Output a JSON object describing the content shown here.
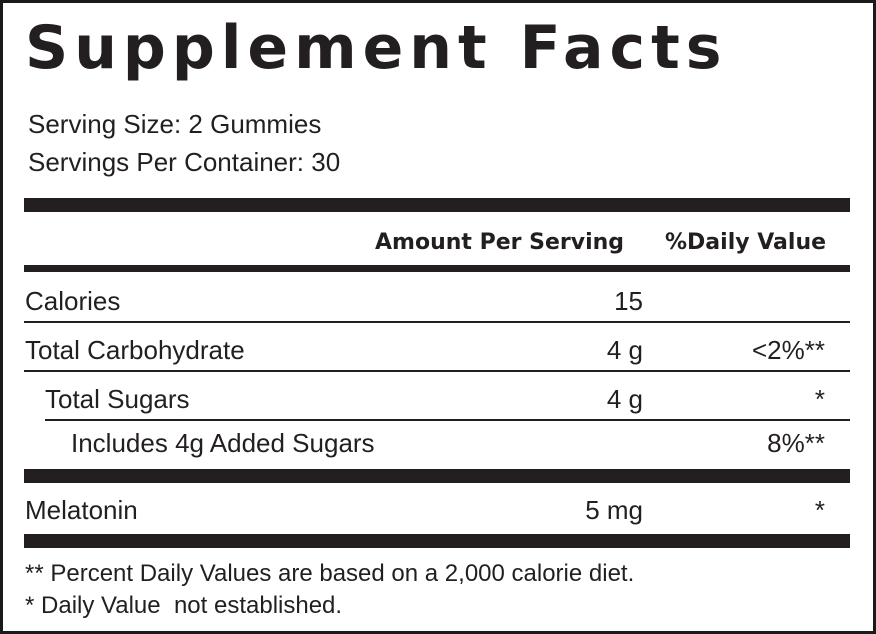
{
  "title": "Supplement Facts",
  "serving_size": "Serving Size: 2 Gummies",
  "servings_per_container": "Servings Per Container: 30",
  "header": {
    "amount_per_serving": "Amount Per Serving",
    "daily_value": "%Daily Value"
  },
  "rows": [
    {
      "name": "Calories",
      "amount": "15",
      "dv": ""
    },
    {
      "name": "Total Carbohydrate",
      "amount": "4 g",
      "dv": "<2%**"
    },
    {
      "name": "Total Sugars",
      "amount": "4 g",
      "dv": "*"
    },
    {
      "name": "Includes 4g Added Sugars",
      "amount": "",
      "dv": "8%**"
    },
    {
      "name": "Melatonin",
      "amount": "5 mg",
      "dv": "*"
    }
  ],
  "footnotes": [
    "** Percent Daily Values are based on a 2,000 calorie diet.",
    "* Daily Value  not established."
  ],
  "colors": {
    "ink": "#231f20",
    "border": "#1a1a1a",
    "background": "#ffffff"
  }
}
